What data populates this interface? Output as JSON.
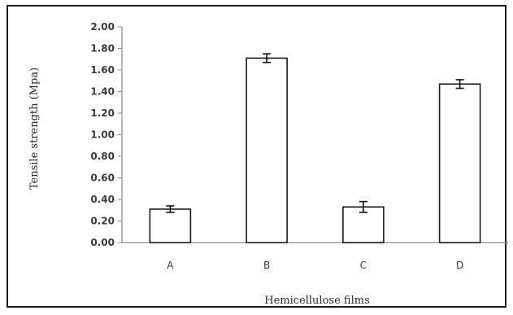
{
  "chart_data": {
    "type": "bar",
    "title": "",
    "xlabel": "Hemicellulose films",
    "ylabel": "Tensile strength (Mpa)",
    "categories": [
      "A",
      "B",
      "C",
      "D"
    ],
    "values": [
      0.31,
      1.71,
      0.33,
      1.47
    ],
    "error": [
      0.03,
      0.04,
      0.05,
      0.04
    ],
    "ylim": [
      0,
      2.0
    ],
    "yticks": [
      "0.00",
      "0.20",
      "0.40",
      "0.60",
      "0.80",
      "1.00",
      "1.20",
      "1.40",
      "1.60",
      "1.80",
      "2.00"
    ],
    "grid": false,
    "legend": "none",
    "bar_fill": "#ffffff",
    "bar_stroke": "#1a1a1a"
  }
}
